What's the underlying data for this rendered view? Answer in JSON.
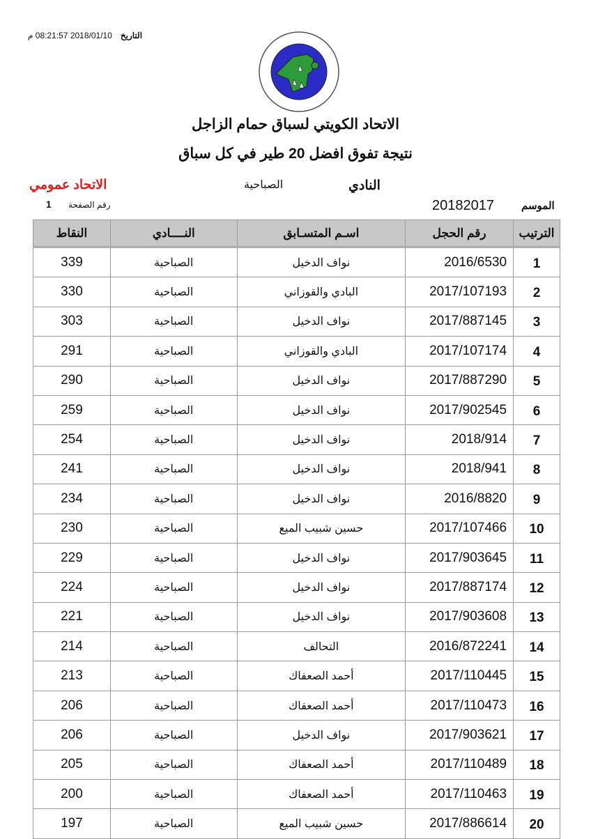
{
  "header": {
    "date_label": "التاريخ",
    "date_value": "2018/01/10 08:21:57 م",
    "logo_text": "الاتحاد الكويتي لسباق حمام الزاجل - KUWAIT FEDERATION FOR RACING PIGEON",
    "title": "الاتحاد الكويتي لسباق حمام الزاجل",
    "subtitle": "نتيجة تفوق  افضل 20  طير في كل سباق",
    "club_label": "النادي",
    "club_value": "الصباحية",
    "scope": "الاتحاد عمومي",
    "season_label": "الموسم",
    "season_value": "20182017",
    "page_label": "رقم الصفحة",
    "page_number": "1",
    "scope_color": "#e31b1b"
  },
  "table": {
    "columns": [
      "الترتيب",
      "رقم الحجل",
      "اسـم المتسـابق",
      "النــــادي",
      "النقاط"
    ],
    "rows": [
      [
        "1",
        "2016/6530",
        "نواف الدخيل",
        "الصباحية",
        "339"
      ],
      [
        "2",
        "2017/107193",
        "البادي والقوزاني",
        "الصباحية",
        "330"
      ],
      [
        "3",
        "2017/887145",
        "نواف الدخيل",
        "الصباحية",
        "303"
      ],
      [
        "4",
        "2017/107174",
        "البادي والقوزاني",
        "الصباحية",
        "291"
      ],
      [
        "5",
        "2017/887290",
        "نواف الدخيل",
        "الصباحية",
        "290"
      ],
      [
        "6",
        "2017/902545",
        "نواف الدخيل",
        "الصباحية",
        "259"
      ],
      [
        "7",
        "2018/914",
        "نواف الدخيل",
        "الصباحية",
        "254"
      ],
      [
        "8",
        "2018/941",
        "نواف الدخيل",
        "الصباحية",
        "241"
      ],
      [
        "9",
        "2016/8820",
        "نواف الدخيل",
        "الصباحية",
        "234"
      ],
      [
        "10",
        "2017/107466",
        "حسين شبيب الميع",
        "الصباحية",
        "230"
      ],
      [
        "11",
        "2017/903645",
        "نواف الدخيل",
        "الصباحية",
        "229"
      ],
      [
        "12",
        "2017/887174",
        "نواف الدخيل",
        "الصباحية",
        "224"
      ],
      [
        "13",
        "2017/903608",
        "نواف الدخيل",
        "الصباحية",
        "221"
      ],
      [
        "14",
        "2016/872241",
        "التحالف",
        "الصباحية",
        "214"
      ],
      [
        "15",
        "2017/110445",
        "أحمد الصعفاك",
        "الصباحية",
        "213"
      ],
      [
        "16",
        "2017/110473",
        "أحمد الصعفاك",
        "الصباحية",
        "206"
      ],
      [
        "17",
        "2017/903621",
        "نواف الدخيل",
        "الصباحية",
        "206"
      ],
      [
        "18",
        "2017/110489",
        "أحمد الصعفاك",
        "الصباحية",
        "205"
      ],
      [
        "19",
        "2017/110463",
        "أحمد الصعفاك",
        "الصباحية",
        "200"
      ],
      [
        "20",
        "2017/886614",
        "حسين شبيب الميع",
        "الصباحية",
        "197"
      ]
    ]
  }
}
